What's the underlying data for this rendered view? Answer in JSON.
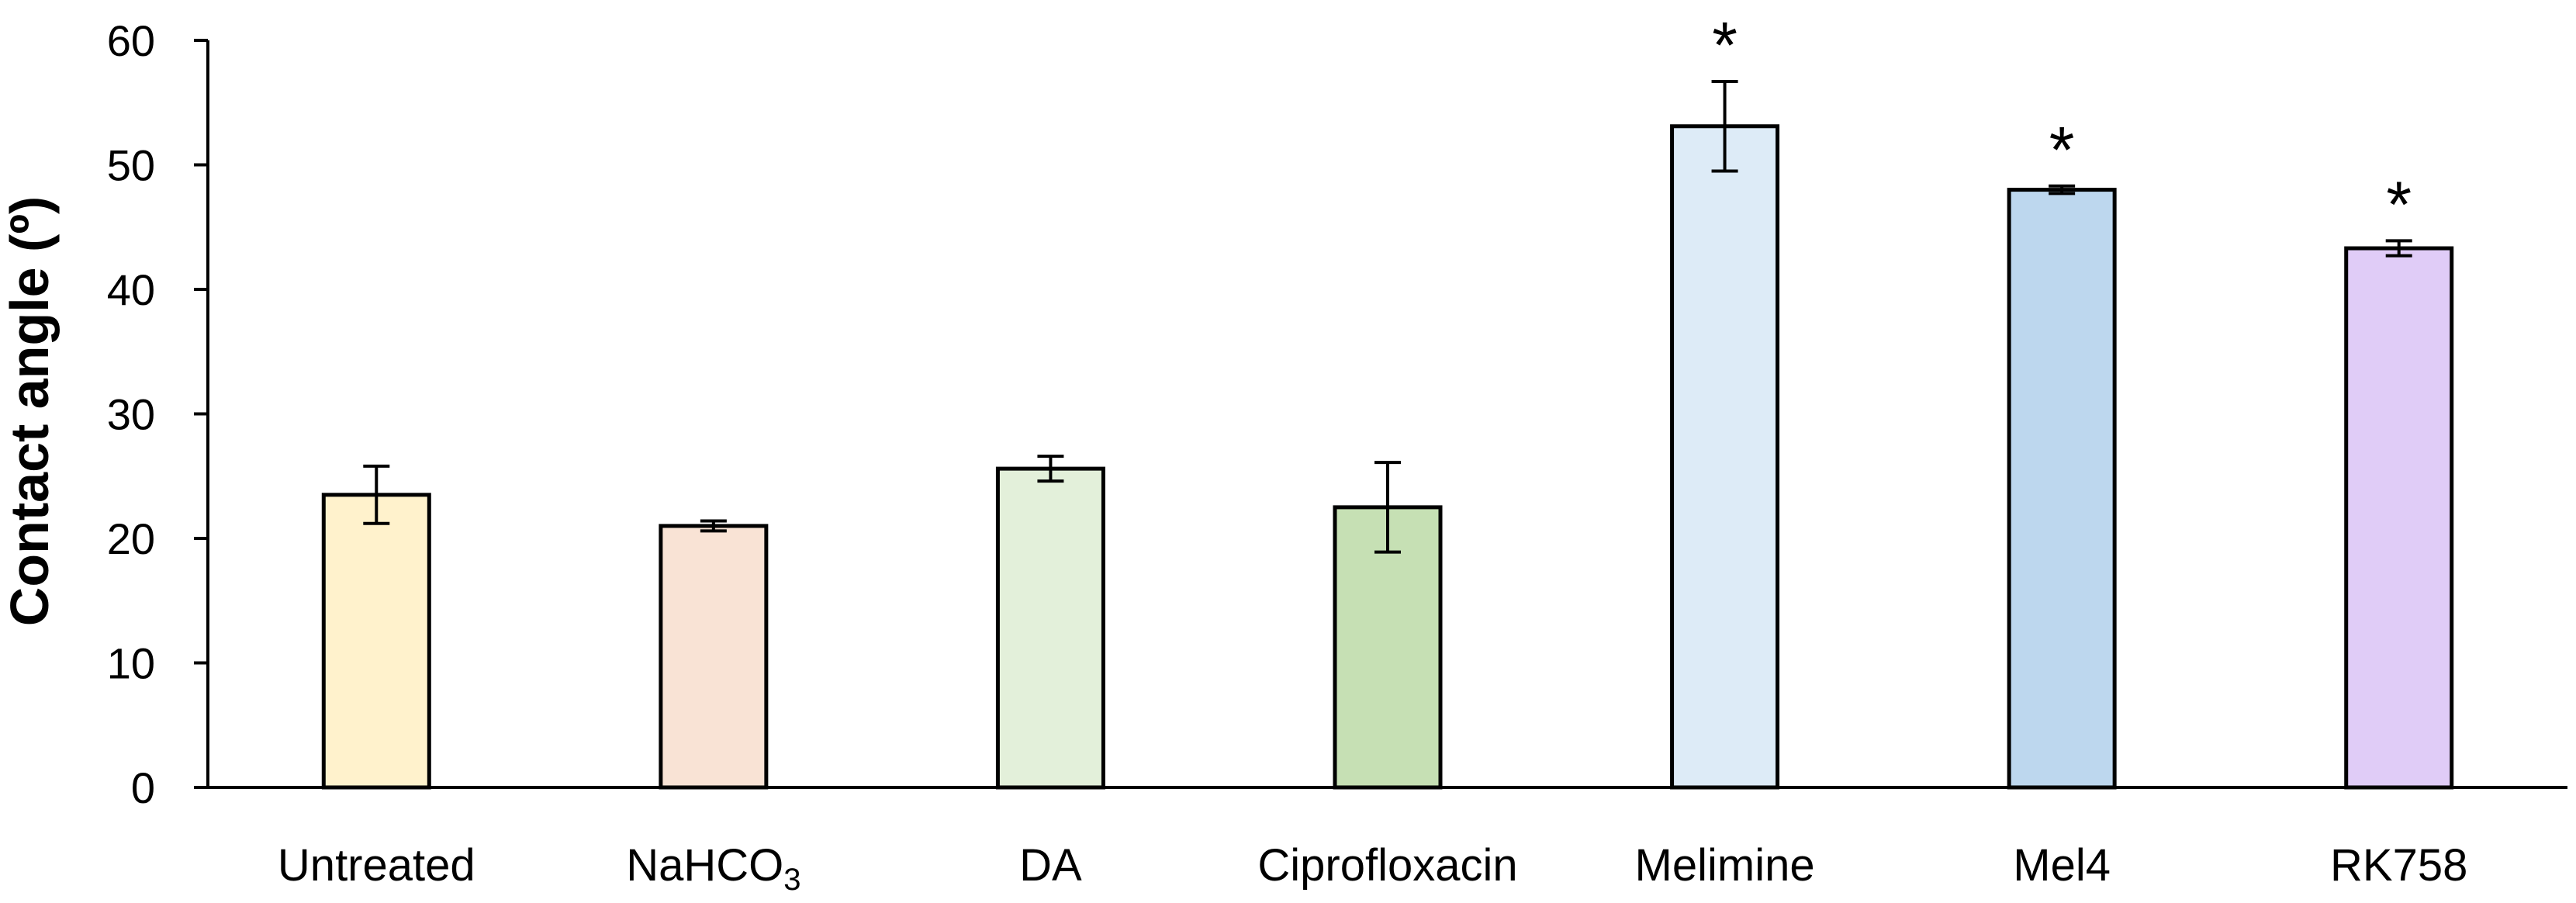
{
  "chart_data": {
    "type": "bar",
    "title": "",
    "xlabel": "",
    "ylabel": "Contact angle (º)",
    "ylim": [
      0,
      60
    ],
    "yticks": [
      "0",
      "10",
      "20",
      "30",
      "40",
      "50",
      "60"
    ],
    "grid": false,
    "legend": "none",
    "categories": [
      {
        "label": "Untreated",
        "subscript": ""
      },
      {
        "label": "NaHCO",
        "subscript": "3"
      },
      {
        "label": "DA",
        "subscript": ""
      },
      {
        "label": "Ciprofloxacin",
        "subscript": ""
      },
      {
        "label": "Melimine",
        "subscript": ""
      },
      {
        "label": "Mel4",
        "subscript": ""
      },
      {
        "label": "RK758",
        "subscript": ""
      }
    ],
    "values": [
      23.5,
      21.0,
      25.6,
      22.5,
      53.1,
      48.0,
      43.3
    ],
    "errors": [
      2.3,
      0.4,
      1.0,
      3.6,
      3.6,
      0.3,
      0.6
    ],
    "annotations": [
      "",
      "",
      "",
      "",
      "*",
      "*",
      "*"
    ],
    "colors": [
      "#FFF2CC",
      "#F9E3D5",
      "#E3F0DA",
      "#C6E0B4",
      "#DDEBF7",
      "#BDD7EE",
      "#E0CCF7"
    ],
    "edge_color": "#000000"
  }
}
